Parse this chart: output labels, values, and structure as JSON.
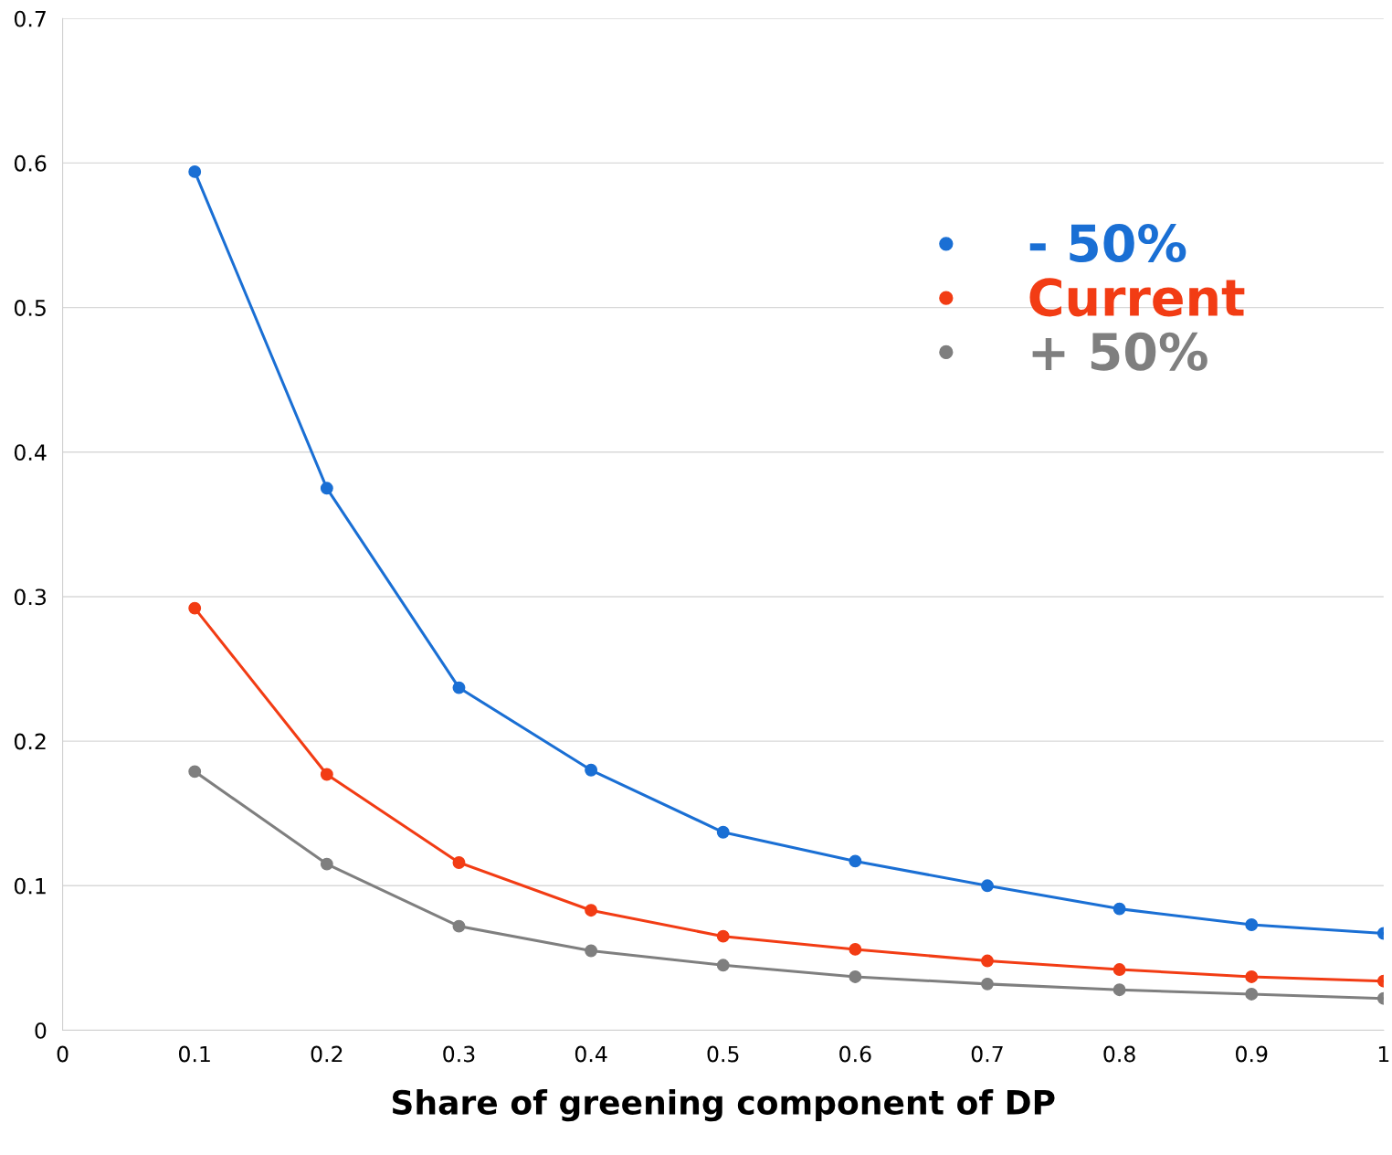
{
  "chart_data": {
    "type": "line",
    "xlabel": "Share of greening component of DP",
    "x": [
      0.1,
      0.2,
      0.3,
      0.4,
      0.5,
      0.6,
      0.7,
      0.8,
      0.9,
      1
    ],
    "series": [
      {
        "name": "- 50%",
        "color": "#1a6fd4",
        "values": [
          0.594,
          0.375,
          0.237,
          0.18,
          0.137,
          0.117,
          0.1,
          0.084,
          0.073,
          0.067
        ]
      },
      {
        "name": "Current",
        "color": "#f23c14",
        "values": [
          0.292,
          0.177,
          0.116,
          0.083,
          0.065,
          0.056,
          0.048,
          0.042,
          0.037,
          0.034
        ]
      },
      {
        "name": "+ 50%",
        "color": "#7f7f7f",
        "values": [
          0.179,
          0.115,
          0.072,
          0.055,
          0.045,
          0.037,
          0.032,
          0.028,
          0.025,
          0.022
        ]
      }
    ],
    "xlim": [
      0,
      1
    ],
    "ylim": [
      0,
      0.7
    ],
    "xticks": [
      0,
      0.1,
      0.2,
      0.3,
      0.4,
      0.5,
      0.6,
      0.7,
      0.8,
      0.9,
      1
    ],
    "yticks": [
      0,
      0.1,
      0.2,
      0.3,
      0.4,
      0.5,
      0.6,
      0.7
    ],
    "grid": "y",
    "legend": "right",
    "marker": "circle",
    "line_style": "solid"
  }
}
